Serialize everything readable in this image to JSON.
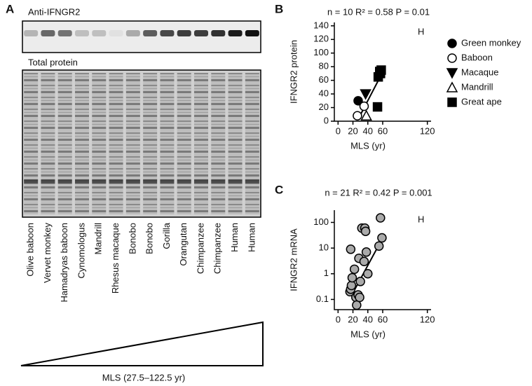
{
  "panel_a": {
    "label": "A",
    "blot_title": "Anti-IFNGR2",
    "total_title": "Total protein",
    "lanes": [
      "Olive baboon",
      "Vervet monkey",
      "Hamadryas baboon",
      "Cynomologus",
      "Mandrill",
      "Rhesus macaque",
      "Bonobo",
      "Bonobo",
      "Gorilla",
      "Orangutan",
      "Chimpanzee",
      "Chimpanzee",
      "Human",
      "Human"
    ],
    "triangle_label": "MLS (27.5–122.5 yr)"
  },
  "chart_data": [
    {
      "type": "scatter",
      "panel": "B",
      "title": "n = 10 R² = 0.58 P = 0.01",
      "x_label": "MLS (yr)",
      "y_label": "IFNGR2 protein",
      "annotation": "H",
      "xlim": [
        -5,
        125
      ],
      "xticks": [
        0,
        20,
        40,
        60,
        120
      ],
      "ylim": [
        0,
        145
      ],
      "yticks": [
        0,
        20,
        40,
        60,
        80,
        100,
        120,
        140
      ],
      "legend": "right",
      "series": [
        {
          "name": "Green monkey",
          "marker": "circle",
          "filled": true,
          "color": "#000000",
          "x": [
            27
          ],
          "values": [
            30
          ]
        },
        {
          "name": "Baboon",
          "marker": "circle",
          "filled": false,
          "color": "#000000",
          "x": [
            26,
            35
          ],
          "values": [
            8,
            22
          ]
        },
        {
          "name": "Macaque",
          "marker": "triangle-down",
          "filled": true,
          "color": "#000000",
          "x": [
            37
          ],
          "values": [
            40
          ]
        },
        {
          "name": "Mandrill",
          "marker": "triangle-up",
          "filled": false,
          "color": "#000000",
          "x": [
            38
          ],
          "values": [
            8
          ]
        },
        {
          "name": "Great ape",
          "marker": "square",
          "filled": true,
          "color": "#000000",
          "x": [
            53,
            54,
            56,
            58,
            57
          ],
          "values": [
            21,
            65,
            73,
            75,
            70
          ]
        }
      ],
      "fit": {
        "x": [
          28,
          58
        ],
        "y": [
          5,
          68
        ]
      }
    },
    {
      "type": "scatter",
      "panel": "C",
      "title": "n = 21 R² = 0.42 P = 0.001",
      "x_label": "MLS (yr)",
      "y_label": "IFNGR2 mRNA",
      "annotation": "H",
      "xlim": [
        -5,
        125
      ],
      "xticks": [
        0,
        20,
        40,
        60,
        120
      ],
      "ylim": [
        0.04,
        300
      ],
      "yscale": "log",
      "yticks": [
        0.1,
        1,
        10,
        100
      ],
      "series": [
        {
          "marker": "circle",
          "filled": true,
          "color": "#aaaaaa",
          "x": [
            16,
            17,
            18,
            19,
            17,
            22,
            24,
            25,
            27,
            28,
            29,
            30,
            32,
            35,
            36,
            37,
            38,
            40,
            55,
            57,
            59
          ],
          "values": [
            0.2,
            0.25,
            0.35,
            0.7,
            9,
            1.5,
            0.12,
            0.06,
            0.15,
            4,
            0.12,
            0.5,
            60,
            3,
            60,
            45,
            7,
            1,
            12,
            150,
            25
          ]
        }
      ],
      "fit": {
        "x": [
          20,
          60
        ],
        "y": [
          0.18,
          25
        ]
      }
    }
  ]
}
